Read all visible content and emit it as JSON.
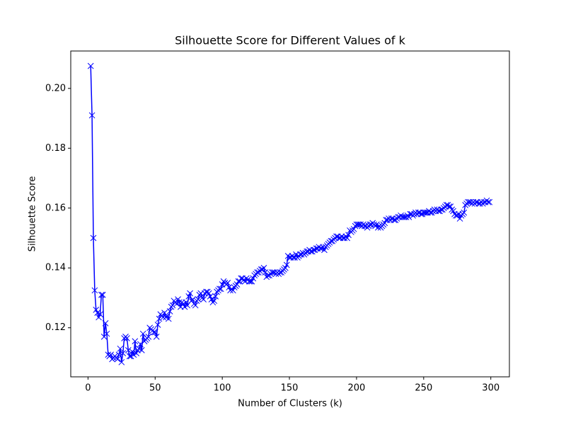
{
  "chart_data": {
    "type": "line",
    "title": "Silhouette Score for Different Values of k",
    "x_label": "Number of Clusters (k)",
    "y_label": "Silhouette Score",
    "xlim": [
      -12.85,
      313.85
    ],
    "ylim": [
      0.1036,
      0.2125
    ],
    "xticks": [
      0,
      50,
      100,
      150,
      200,
      250,
      300
    ],
    "yticks": [
      0.12,
      0.14,
      0.16,
      0.18,
      {
        "value": 0.2,
        "label": "0.20"
      }
    ],
    "grid": false,
    "marker": "x",
    "x": [
      2,
      3,
      4,
      5,
      6,
      7,
      8,
      9,
      10,
      11,
      12,
      13,
      14,
      15,
      16,
      17,
      18,
      19,
      20,
      21,
      22,
      23,
      24,
      25,
      26,
      27,
      28,
      29,
      30,
      31,
      32,
      33,
      34,
      35,
      36,
      37,
      38,
      39,
      40,
      41,
      42,
      43,
      44,
      45,
      46,
      47,
      48,
      49,
      50,
      51,
      52,
      53,
      54,
      55,
      56,
      57,
      58,
      59,
      60,
      61,
      62,
      63,
      64,
      65,
      66,
      67,
      68,
      69,
      70,
      71,
      72,
      73,
      74,
      75,
      76,
      77,
      78,
      79,
      80,
      81,
      82,
      83,
      84,
      85,
      86,
      87,
      88,
      89,
      90,
      91,
      92,
      93,
      94,
      95,
      96,
      97,
      98,
      99,
      100,
      101,
      102,
      103,
      104,
      105,
      106,
      107,
      108,
      109,
      110,
      111,
      112,
      113,
      114,
      115,
      116,
      117,
      118,
      119,
      120,
      121,
      122,
      123,
      124,
      125,
      126,
      127,
      128,
      129,
      130,
      131,
      132,
      133,
      134,
      135,
      136,
      137,
      138,
      139,
      140,
      141,
      142,
      143,
      144,
      145,
      146,
      147,
      148,
      149,
      150,
      151,
      152,
      153,
      154,
      155,
      156,
      157,
      158,
      159,
      160,
      161,
      162,
      163,
      164,
      165,
      166,
      167,
      168,
      169,
      170,
      171,
      172,
      173,
      174,
      175,
      176,
      177,
      178,
      179,
      180,
      181,
      182,
      183,
      184,
      185,
      186,
      187,
      188,
      189,
      190,
      191,
      192,
      193,
      194,
      195,
      196,
      197,
      198,
      199,
      200,
      201,
      202,
      203,
      204,
      205,
      206,
      207,
      208,
      209,
      210,
      211,
      212,
      213,
      214,
      215,
      216,
      217,
      218,
      219,
      220,
      221,
      222,
      223,
      224,
      225,
      226,
      227,
      228,
      229,
      230,
      231,
      232,
      233,
      234,
      235,
      236,
      237,
      238,
      239,
      240,
      241,
      242,
      243,
      244,
      245,
      246,
      247,
      248,
      249,
      250,
      251,
      252,
      253,
      254,
      255,
      256,
      257,
      258,
      259,
      260,
      261,
      262,
      263,
      264,
      265,
      266,
      267,
      268,
      269,
      270,
      271,
      272,
      273,
      274,
      275,
      276,
      277,
      278,
      279,
      280,
      281,
      282,
      283,
      284,
      285,
      286,
      287,
      288,
      289,
      290,
      291,
      292,
      293,
      294,
      295,
      296,
      297,
      298,
      299
    ],
    "series": [
      {
        "color": "#0000ff",
        "values": [
          0.2075,
          0.191,
          0.15,
          0.1325,
          0.126,
          0.125,
          0.1235,
          0.1245,
          0.131,
          0.131,
          0.117,
          0.1215,
          0.118,
          0.111,
          0.1105,
          0.111,
          0.1095,
          0.11,
          0.1105,
          0.11,
          0.1095,
          0.111,
          0.113,
          0.1085,
          0.1115,
          0.1165,
          0.117,
          0.1165,
          0.1125,
          0.1105,
          0.1105,
          0.112,
          0.111,
          0.1155,
          0.1115,
          0.1125,
          0.113,
          0.1145,
          0.1125,
          0.118,
          0.1155,
          0.116,
          0.1165,
          0.117,
          0.12,
          0.1195,
          0.119,
          0.1185,
          0.1185,
          0.117,
          0.121,
          0.123,
          0.1245,
          0.124,
          0.1235,
          0.125,
          0.1235,
          0.124,
          0.123,
          0.1255,
          0.127,
          0.1275,
          0.129,
          0.1285,
          0.128,
          0.1295,
          0.1285,
          0.127,
          0.1285,
          0.128,
          0.127,
          0.1285,
          0.1275,
          0.1305,
          0.1315,
          0.129,
          0.1295,
          0.128,
          0.1275,
          0.129,
          0.1295,
          0.131,
          0.1315,
          0.13,
          0.1295,
          0.1315,
          0.132,
          0.132,
          0.1315,
          0.1305,
          0.1295,
          0.1285,
          0.129,
          0.1305,
          0.132,
          0.1325,
          0.133,
          0.133,
          0.1345,
          0.1355,
          0.135,
          0.1345,
          0.135,
          0.1335,
          0.1325,
          0.133,
          0.1325,
          0.1335,
          0.134,
          0.1345,
          0.1355,
          0.1355,
          0.1365,
          0.1365,
          0.136,
          0.1355,
          0.1365,
          0.136,
          0.1355,
          0.1355,
          0.1355,
          0.1365,
          0.1375,
          0.138,
          0.1385,
          0.1385,
          0.139,
          0.1395,
          0.1395,
          0.14,
          0.1385,
          0.137,
          0.1375,
          0.1375,
          0.138,
          0.1385,
          0.1385,
          0.1385,
          0.138,
          0.1385,
          0.138,
          0.1385,
          0.1385,
          0.139,
          0.1395,
          0.14,
          0.141,
          0.144,
          0.1435,
          0.1435,
          0.144,
          0.1435,
          0.1435,
          0.1445,
          0.1435,
          0.144,
          0.1445,
          0.1445,
          0.145,
          0.1445,
          0.145,
          0.1455,
          0.1455,
          0.146,
          0.1455,
          0.1455,
          0.146,
          0.146,
          0.1465,
          0.1465,
          0.147,
          0.1465,
          0.1465,
          0.147,
          0.146,
          0.147,
          0.1475,
          0.148,
          0.1485,
          0.149,
          0.149,
          0.1495,
          0.15,
          0.1505,
          0.1505,
          0.15,
          0.15,
          0.1505,
          0.15,
          0.15,
          0.1505,
          0.15,
          0.151,
          0.1525,
          0.152,
          0.1525,
          0.153,
          0.154,
          0.1545,
          0.1545,
          0.1545,
          0.1545,
          0.154,
          0.1545,
          0.154,
          0.154,
          0.1535,
          0.154,
          0.1545,
          0.1545,
          0.155,
          0.1545,
          0.154,
          0.1545,
          0.1535,
          0.154,
          0.1535,
          0.154,
          0.1545,
          0.155,
          0.156,
          0.156,
          0.1565,
          0.156,
          0.1565,
          0.1565,
          0.156,
          0.156,
          0.1565,
          0.157,
          0.157,
          0.1575,
          0.157,
          0.157,
          0.157,
          0.157,
          0.1575,
          0.157,
          0.158,
          0.158,
          0.1575,
          0.158,
          0.1585,
          0.158,
          0.1585,
          0.1585,
          0.158,
          0.158,
          0.1585,
          0.1585,
          0.1585,
          0.1585,
          0.159,
          0.1585,
          0.1585,
          0.159,
          0.1595,
          0.159,
          0.1595,
          0.159,
          0.159,
          0.1595,
          0.1595,
          0.16,
          0.1605,
          0.161,
          0.161,
          0.1605,
          0.1605,
          0.1595,
          0.159,
          0.158,
          0.1575,
          0.1575,
          0.158,
          0.1565,
          0.1575,
          0.158,
          0.1585,
          0.161,
          0.1615,
          0.162,
          0.162,
          0.162,
          0.1615,
          0.162,
          0.1615,
          0.162,
          0.162,
          0.1615,
          0.1615,
          0.162,
          0.1615,
          0.162,
          0.162,
          0.1625,
          0.162,
          0.162
        ]
      }
    ]
  }
}
